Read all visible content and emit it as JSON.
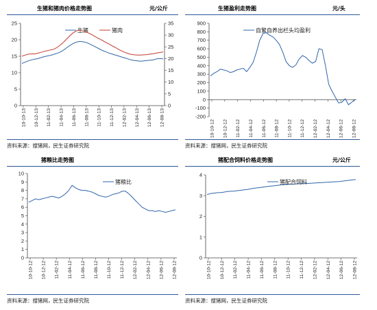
{
  "panels": [
    {
      "title": "生猪和猪肉价格走势图",
      "unit": "元/公斤",
      "source": "资料来源：搜猪网，民生证券研究院"
    },
    {
      "title": "生猪盈利走势图",
      "unit": "元/头",
      "source": "资料来源：搜猪网，民生证券研究院"
    },
    {
      "title": "猪粮比走势图",
      "unit": "",
      "source": "资料来源：搜猪网，民生证券研究院"
    },
    {
      "title": "猪配合饲料价格走势图",
      "unit": "元/公斤",
      "source": "资料来源：搜猪网，民生证券研究院"
    }
  ],
  "chart_data": [
    {
      "type": "line",
      "title": "生猪和猪肉价格走势图",
      "x_ticks": [
        "10-10-13",
        "10-12-13",
        "11-02-13",
        "11-04-13",
        "11-06-13",
        "11-08-13",
        "11-10-13",
        "11-12-13",
        "12-02-13",
        "12-04-13",
        "12-06-13",
        "12-08-13"
      ],
      "y_ticks": [
        "0",
        "5",
        "10",
        "15",
        "20",
        "25"
      ],
      "y2_ticks": [
        "0",
        "5",
        "10",
        "15",
        "20",
        "25",
        "30",
        "35"
      ],
      "ylim": [
        0,
        25
      ],
      "y2lim": [
        0,
        35
      ],
      "grid": false,
      "legend": "top-center",
      "series": [
        {
          "name": "生猪",
          "axis": "left",
          "color": "#2e64a8",
          "values": [
            12.8,
            13.2,
            13.6,
            13.9,
            14.1,
            14.3,
            14.6,
            14.9,
            15.1,
            15.3,
            15.6,
            15.9,
            16.3,
            16.9,
            17.6,
            18.3,
            18.9,
            19.3,
            19.5,
            19.4,
            19.2,
            18.8,
            18.3,
            17.8,
            17.3,
            16.8,
            16.4,
            16.0,
            15.7,
            15.4,
            15.1,
            14.8,
            14.5,
            14.2,
            13.9,
            13.7,
            13.6,
            13.5,
            13.6,
            13.7,
            13.8,
            13.9,
            14.2,
            14.3,
            14.2
          ]
        },
        {
          "name": "猪肉",
          "axis": "right",
          "color": "#c0392b",
          "values": [
            21.0,
            21.5,
            21.9,
            22.0,
            22.0,
            22.3,
            22.7,
            23.1,
            23.4,
            23.7,
            24.0,
            24.8,
            25.8,
            27.0,
            28.4,
            29.8,
            31.0,
            31.8,
            32.0,
            31.7,
            31.3,
            30.7,
            30.0,
            29.2,
            28.5,
            27.8,
            27.0,
            26.3,
            25.5,
            24.8,
            24.0,
            23.3,
            22.7,
            22.2,
            21.8,
            21.6,
            21.5,
            21.5,
            21.6,
            21.7,
            21.9,
            22.1,
            22.4,
            22.6,
            22.8
          ]
        }
      ]
    },
    {
      "type": "line",
      "title": "生猪盈利走势图",
      "x_ticks": [
        "10-10-12",
        "10-12-12",
        "11-02-12",
        "11-04-12",
        "11-06-12",
        "11-08-12",
        "11-10-12",
        "11-12-12",
        "12-02-12",
        "12-04-12",
        "12-06-12",
        "12-08-12"
      ],
      "y_ticks": [
        "-200",
        "-100",
        "0",
        "100",
        "200",
        "300",
        "400",
        "500",
        "600",
        "700",
        "800",
        "900"
      ],
      "ylim": [
        -200,
        900
      ],
      "grid": false,
      "legend": "top-center",
      "series": [
        {
          "name": "自繁自养出栏头均盈利",
          "color": "#2e64a8",
          "values": [
            280,
            310,
            330,
            360,
            350,
            340,
            320,
            330,
            350,
            360,
            370,
            330,
            380,
            440,
            560,
            700,
            780,
            790,
            760,
            740,
            700,
            650,
            560,
            450,
            400,
            380,
            410,
            480,
            520,
            500,
            460,
            430,
            450,
            600,
            590,
            400,
            180,
            100,
            30,
            -40,
            -30,
            10,
            -60,
            -30,
            0
          ]
        }
      ]
    },
    {
      "type": "line",
      "title": "猪粮比走势图",
      "x_ticks": [
        "10-10-12",
        "10-12-12",
        "11-02-12",
        "11-04-12",
        "11-06-12",
        "11-08-12",
        "11-10-12",
        "11-12-12",
        "12-02-12",
        "12-04-12",
        "12-06-12",
        "12-08-12"
      ],
      "y_ticks": [
        "0",
        "1",
        "2",
        "3",
        "4",
        "5",
        "6",
        "7",
        "8",
        "9",
        "10"
      ],
      "ylim": [
        0,
        10
      ],
      "grid": false,
      "legend": "top-right",
      "series": [
        {
          "name": "猪粮比",
          "color": "#2e64a8",
          "values": [
            6.6,
            6.8,
            7.0,
            6.9,
            7.0,
            7.1,
            7.2,
            7.3,
            7.2,
            7.1,
            7.3,
            7.6,
            8.0,
            8.6,
            8.3,
            8.1,
            8.0,
            8.0,
            7.9,
            7.8,
            7.6,
            7.4,
            7.3,
            7.2,
            7.3,
            7.5,
            7.6,
            7.7,
            7.9,
            7.9,
            7.6,
            7.2,
            6.8,
            6.4,
            6.0,
            5.8,
            5.6,
            5.6,
            5.5,
            5.6,
            5.5,
            5.4,
            5.5,
            5.6,
            5.7
          ]
        }
      ]
    },
    {
      "type": "line",
      "title": "猪配合饲料价格走势图",
      "x_ticks": [
        "10-10-12",
        "10-12-12",
        "11-02-12",
        "11-04-12",
        "11-06-12",
        "11-08-12",
        "11-10-12",
        "11-12-12",
        "12-02-12",
        "12-04-12",
        "12-06-12",
        "12-08-12"
      ],
      "y_ticks": [
        "0",
        "1",
        "2",
        "3",
        "4"
      ],
      "ylim": [
        0,
        4
      ],
      "grid": false,
      "legend": "top-center",
      "series": [
        {
          "name": "猪配合饲料",
          "color": "#2e64a8",
          "values": [
            3.05,
            3.1,
            3.12,
            3.14,
            3.15,
            3.17,
            3.2,
            3.21,
            3.22,
            3.24,
            3.26,
            3.28,
            3.3,
            3.33,
            3.36,
            3.38,
            3.4,
            3.42,
            3.44,
            3.46,
            3.48,
            3.5,
            3.52,
            3.53,
            3.54,
            3.55,
            3.56,
            3.57,
            3.58,
            3.58,
            3.59,
            3.6,
            3.61,
            3.62,
            3.63,
            3.64,
            3.65,
            3.66,
            3.67,
            3.68,
            3.7,
            3.72,
            3.74,
            3.76,
            3.78
          ]
        }
      ]
    }
  ]
}
